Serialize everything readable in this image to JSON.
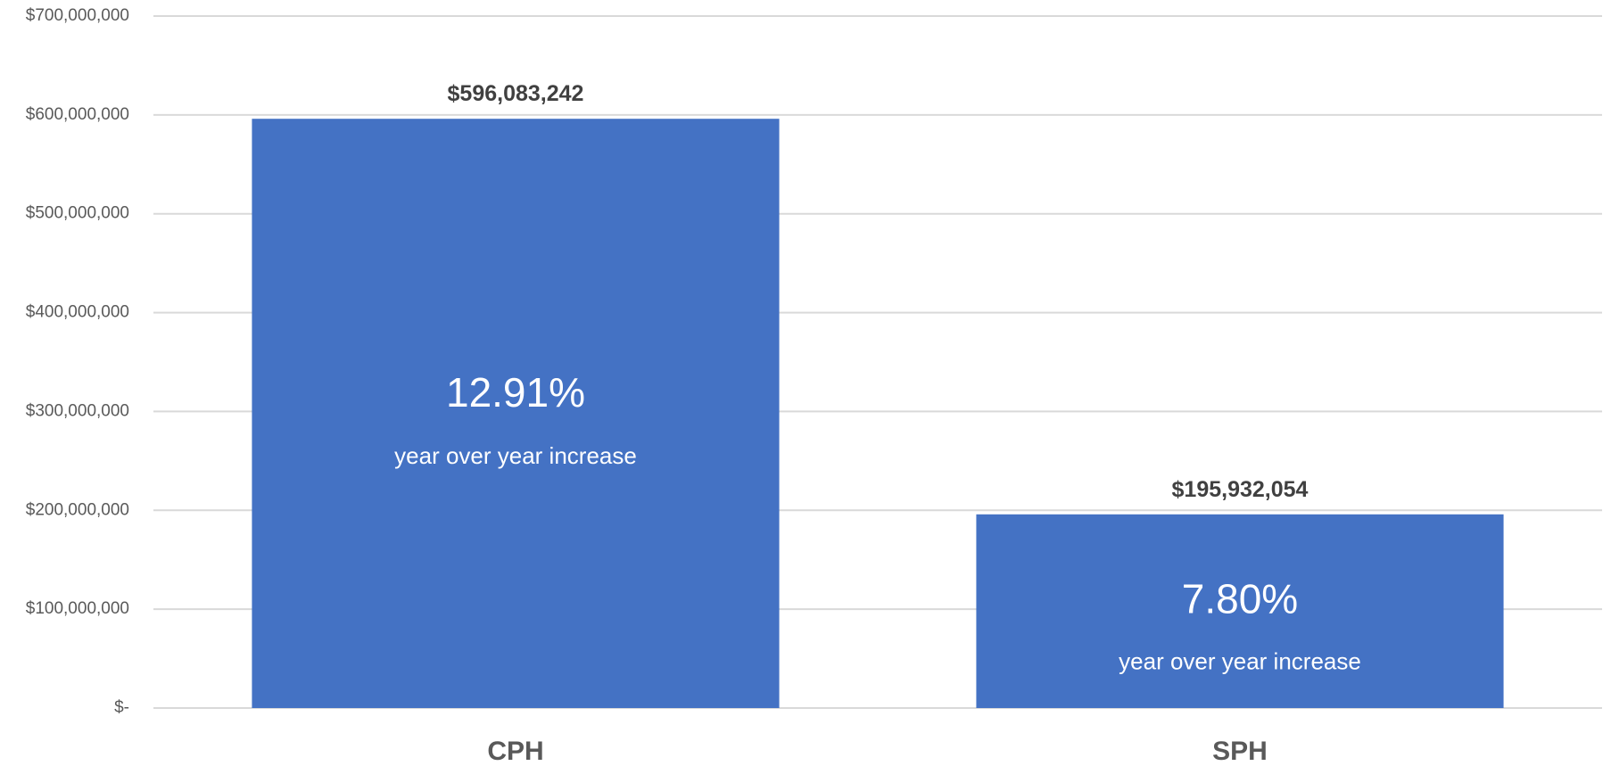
{
  "chart_data": {
    "type": "bar",
    "categories": [
      "CPH",
      "SPH"
    ],
    "values": [
      596083242,
      195932054
    ],
    "value_labels": [
      "$596,083,242",
      "$195,932,054"
    ],
    "inner_labels": [
      {
        "percent": "12.91%",
        "caption": "year over year increase"
      },
      {
        "percent": "7.80%",
        "caption": "year over year increase"
      }
    ],
    "ylim": [
      0,
      700000000
    ],
    "yticks": [
      0,
      100000000,
      200000000,
      300000000,
      400000000,
      500000000,
      600000000,
      700000000
    ],
    "ytick_labels": [
      "$-",
      "$100,000,000",
      "$200,000,000",
      "$300,000,000",
      "$400,000,000",
      "$500,000,000",
      "$600,000,000",
      "$700,000,000"
    ],
    "title": "",
    "xlabel": "",
    "ylabel": "",
    "grid": true,
    "colors": {
      "bar": "#4472C4",
      "grid": "#D9D9D9",
      "tick_text": "#595959",
      "value_text": "#404040"
    }
  }
}
